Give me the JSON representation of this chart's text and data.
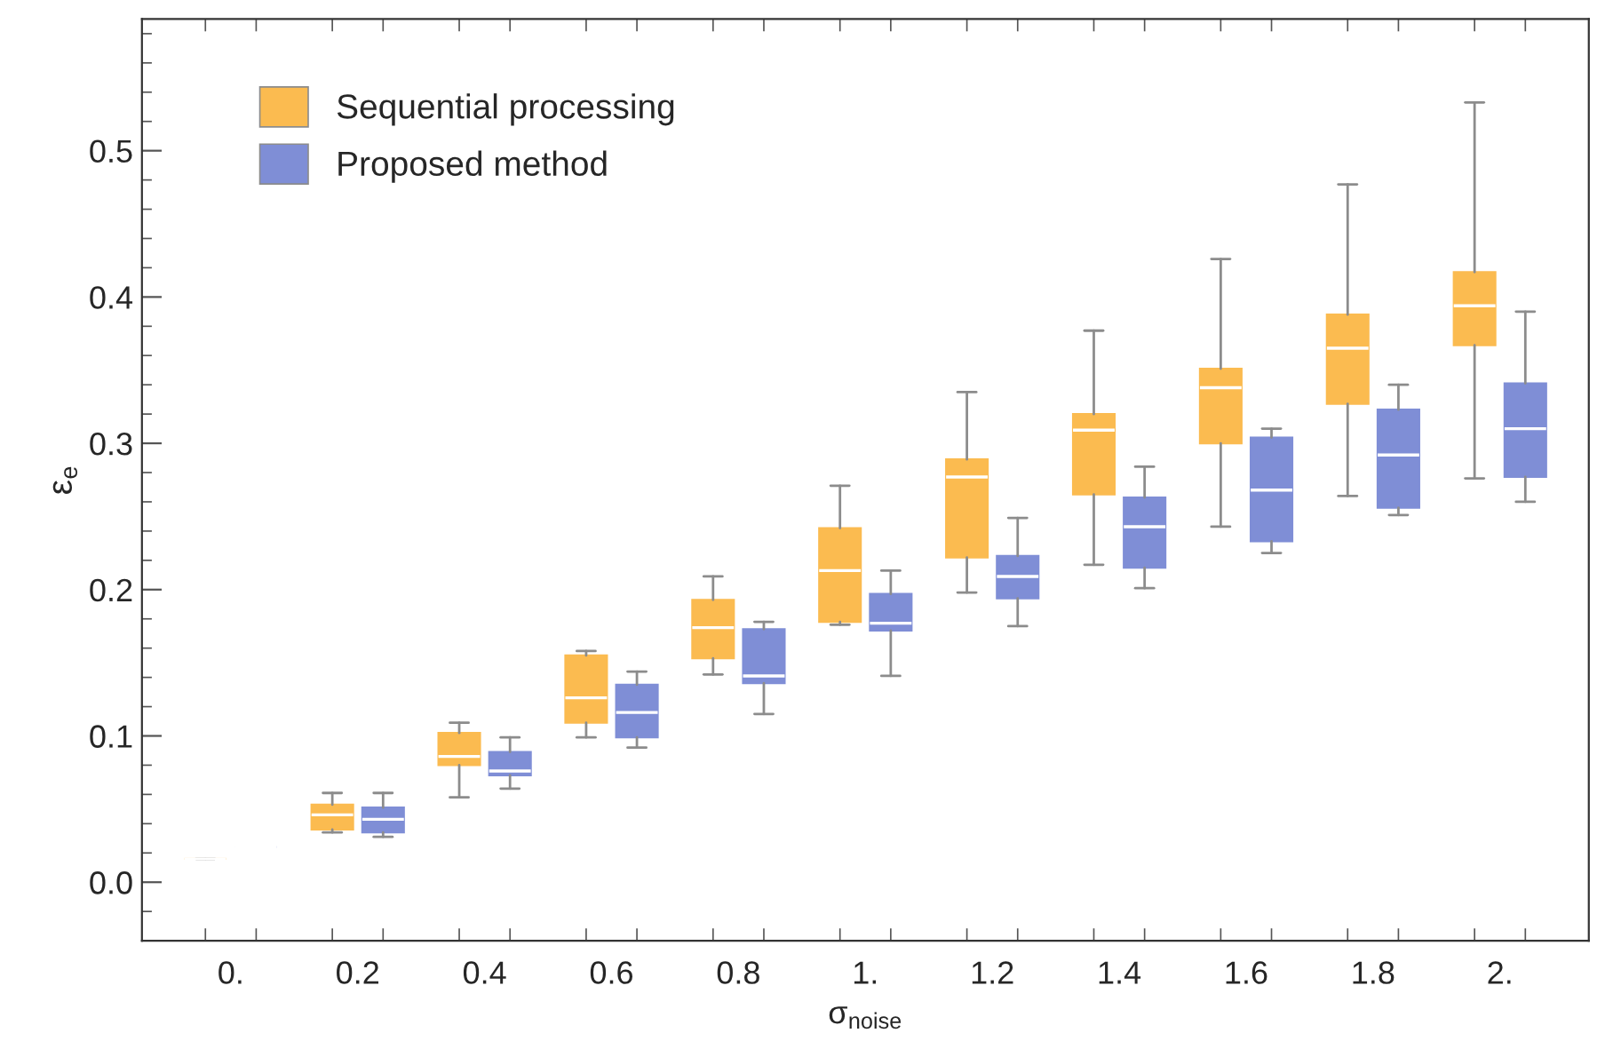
{
  "chart_data": {
    "type": "box",
    "xlabel": "σ$_{noise}$",
    "ylabel": "ε$_{e}$",
    "categories": [
      "0.",
      "0.2",
      "0.4",
      "0.6",
      "0.8",
      "1.",
      "1.2",
      "1.4",
      "1.6",
      "1.8",
      "2."
    ],
    "ylim": [
      -0.04,
      0.59
    ],
    "yticks": [
      {
        "value": 0.0,
        "label": "0.0"
      },
      0.1,
      0.2,
      0.3,
      0.4,
      0.5
    ],
    "legend": "top left",
    "grid": false,
    "series": [
      {
        "name": "Sequential processing",
        "color": "#fbbb50",
        "boxes": [
          {
            "low": 0.016,
            "q1": 0.016,
            "median": 0.016,
            "q3": 0.016,
            "high": 0.016
          },
          {
            "low": 0.034,
            "q1": 0.036,
            "median": 0.046,
            "q3": 0.053,
            "high": 0.061
          },
          {
            "low": 0.058,
            "q1": 0.08,
            "median": 0.086,
            "q3": 0.102,
            "high": 0.109
          },
          {
            "low": 0.099,
            "q1": 0.109,
            "median": 0.126,
            "q3": 0.155,
            "high": 0.158
          },
          {
            "low": 0.142,
            "q1": 0.153,
            "median": 0.174,
            "q3": 0.193,
            "high": 0.209
          },
          {
            "low": 0.176,
            "q1": 0.178,
            "median": 0.213,
            "q3": 0.242,
            "high": 0.271
          },
          {
            "low": 0.198,
            "q1": 0.222,
            "median": 0.277,
            "q3": 0.289,
            "high": 0.335
          },
          {
            "low": 0.217,
            "q1": 0.265,
            "median": 0.309,
            "q3": 0.32,
            "high": 0.377
          },
          {
            "low": 0.243,
            "q1": 0.3,
            "median": 0.338,
            "q3": 0.351,
            "high": 0.426
          },
          {
            "low": 0.264,
            "q1": 0.327,
            "median": 0.365,
            "q3": 0.388,
            "high": 0.477
          },
          {
            "low": 0.276,
            "q1": 0.367,
            "median": 0.394,
            "q3": 0.417,
            "high": 0.533
          }
        ]
      },
      {
        "name": "Proposed method",
        "color": "#7f8ed6",
        "boxes": [
          {
            "low": 0.024,
            "q1": 0.024,
            "median": 0.024,
            "q3": 0.024,
            "high": 0.024
          },
          {
            "low": 0.031,
            "q1": 0.034,
            "median": 0.043,
            "q3": 0.051,
            "high": 0.061
          },
          {
            "low": 0.064,
            "q1": 0.073,
            "median": 0.076,
            "q3": 0.089,
            "high": 0.099
          },
          {
            "low": 0.092,
            "q1": 0.099,
            "median": 0.116,
            "q3": 0.135,
            "high": 0.144
          },
          {
            "low": 0.115,
            "q1": 0.136,
            "median": 0.141,
            "q3": 0.173,
            "high": 0.178
          },
          {
            "low": 0.141,
            "q1": 0.172,
            "median": 0.177,
            "q3": 0.197,
            "high": 0.213
          },
          {
            "low": 0.175,
            "q1": 0.194,
            "median": 0.209,
            "q3": 0.223,
            "high": 0.249
          },
          {
            "low": 0.201,
            "q1": 0.215,
            "median": 0.243,
            "q3": 0.263,
            "high": 0.284
          },
          {
            "low": 0.225,
            "q1": 0.233,
            "median": 0.268,
            "q3": 0.304,
            "high": 0.31
          },
          {
            "low": 0.251,
            "q1": 0.256,
            "median": 0.292,
            "q3": 0.323,
            "high": 0.34
          },
          {
            "low": 0.26,
            "q1": 0.277,
            "median": 0.31,
            "q3": 0.341,
            "high": 0.39
          }
        ]
      }
    ]
  }
}
